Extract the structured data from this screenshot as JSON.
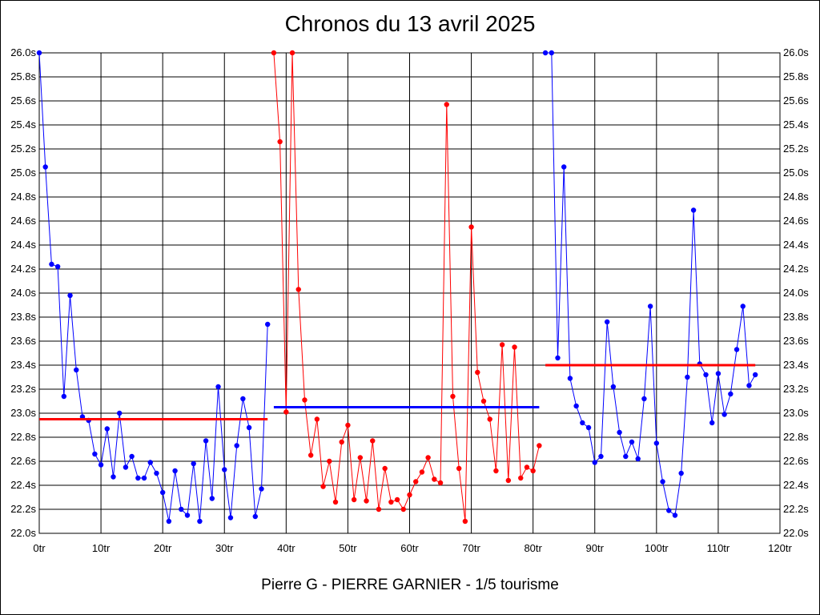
{
  "title": "Chronos du 13 avril 2025",
  "footer": "Pierre G - PIERRE GARNIER - 1/5 tourisme",
  "chart_data": {
    "type": "line",
    "title": "Chronos du 13 avril 2025",
    "xlabel": "",
    "ylabel": "",
    "xlim": [
      0,
      120
    ],
    "ylim": [
      22.0,
      26.0
    ],
    "x_ticks": [
      "0tr",
      "10tr",
      "20tr",
      "30tr",
      "40tr",
      "50tr",
      "60tr",
      "70tr",
      "80tr",
      "90tr",
      "100tr",
      "110tr",
      "120tr"
    ],
    "y_ticks": [
      "22.0s",
      "22.2s",
      "22.4s",
      "22.6s",
      "22.8s",
      "23.0s",
      "23.2s",
      "23.4s",
      "23.6s",
      "23.8s",
      "24.0s",
      "24.2s",
      "24.4s",
      "24.6s",
      "24.8s",
      "25.0s",
      "25.2s",
      "25.4s",
      "25.6s",
      "25.8s",
      "26.0s"
    ],
    "grid": true,
    "series": [
      {
        "color": "#0000ff",
        "x": [
          0,
          1,
          2,
          3,
          4,
          5,
          6,
          7,
          8,
          9,
          10,
          11,
          12,
          13,
          14,
          15,
          16,
          17,
          18,
          19,
          20,
          21,
          22,
          23,
          24,
          25,
          26,
          27,
          28,
          29,
          30,
          31,
          32,
          33,
          34,
          35,
          36,
          37
        ],
        "values": [
          26.0,
          25.05,
          24.24,
          24.22,
          23.14,
          23.98,
          23.36,
          22.97,
          22.94,
          22.66,
          22.57,
          22.87,
          22.47,
          23.0,
          22.55,
          22.64,
          22.46,
          22.46,
          22.59,
          22.5,
          22.34,
          22.1,
          22.52,
          22.2,
          22.15,
          22.58,
          22.1,
          22.77,
          22.29,
          23.22,
          22.53,
          22.13,
          22.73,
          23.12,
          22.88,
          22.14,
          22.37,
          23.74
        ]
      },
      {
        "color": "#ff0000",
        "x": [
          38,
          39,
          40,
          41,
          42,
          43,
          44,
          45,
          46,
          47,
          48,
          49,
          50,
          51,
          52,
          53,
          54,
          55,
          56,
          57,
          58,
          59,
          60,
          61,
          62,
          63,
          64,
          65,
          66,
          67,
          68,
          69,
          70,
          71,
          72,
          73,
          74,
          75,
          76,
          77,
          78,
          79,
          80,
          81
        ],
        "values": [
          26.0,
          25.26,
          23.01,
          26.0,
          24.03,
          23.11,
          22.65,
          22.95,
          22.39,
          22.6,
          22.26,
          22.76,
          22.9,
          22.28,
          22.63,
          22.27,
          22.77,
          22.2,
          22.54,
          22.26,
          22.28,
          22.2,
          22.32,
          22.43,
          22.51,
          22.63,
          22.45,
          22.42,
          25.57,
          23.14,
          22.54,
          22.1,
          24.55,
          23.34,
          23.1,
          22.95,
          22.52,
          23.57,
          22.44,
          23.55,
          22.46,
          22.55,
          22.52,
          22.73
        ]
      },
      {
        "color": "#0000ff",
        "x": [
          82,
          83,
          84,
          85,
          86,
          87,
          88,
          89,
          90,
          91,
          92,
          93,
          94,
          95,
          96,
          97,
          98,
          99,
          100,
          101,
          102,
          103,
          104,
          105,
          106,
          107,
          108,
          109,
          110,
          111,
          112,
          113,
          114,
          115,
          116
        ],
        "values": [
          26.0,
          26.0,
          23.46,
          25.05,
          23.29,
          23.06,
          22.92,
          22.88,
          22.59,
          22.64,
          23.76,
          23.22,
          22.84,
          22.64,
          22.76,
          22.62,
          23.12,
          23.89,
          22.75,
          22.43,
          22.19,
          22.15,
          22.5,
          23.3,
          24.69,
          23.41,
          23.32,
          22.92,
          23.33,
          22.99,
          23.16,
          23.53,
          23.89,
          23.23,
          23.32
        ]
      }
    ],
    "averages": [
      {
        "x_start": 0,
        "x_end": 37,
        "value": 22.95,
        "color": "#ff0000"
      },
      {
        "x_start": 38,
        "x_end": 81,
        "value": 23.05,
        "color": "#0000ff"
      },
      {
        "x_start": 82,
        "x_end": 116,
        "value": 23.4,
        "color": "#ff0000"
      }
    ]
  }
}
